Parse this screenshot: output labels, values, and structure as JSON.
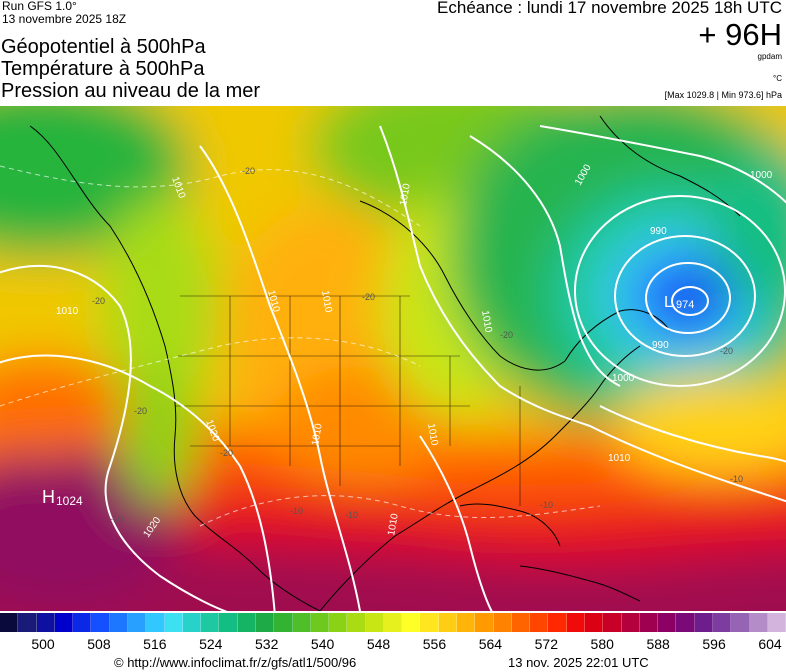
{
  "header": {
    "run": "Run GFS 1.0°",
    "run_date": "13 novembre 2025 18Z",
    "titles": [
      "Géopotentiel à 500hPa",
      "Température à 500hPa",
      "Pression au niveau de la mer"
    ],
    "echeance": "Echéance : lundi 17 novembre 2025 18h UTC",
    "forecast_hour": "+ 96H",
    "unit_geopotential": "gpdam",
    "unit_temperature": "°C",
    "pressure_extremes": "[Max 1029.8 | Min 973.6] hPa"
  },
  "map": {
    "pressure_centers": [
      {
        "type": "H",
        "value": "1024"
      },
      {
        "type": "L",
        "value": "974"
      }
    ],
    "isobar_labels": [
      "1010",
      "1010",
      "1020",
      "1010",
      "1000",
      "990",
      "1000",
      "990",
      "1000",
      "1010",
      "1010",
      "1010",
      "1010",
      "1020",
      "1010",
      "1010",
      "1010"
    ],
    "isotherm_labels": [
      "-20",
      "-20",
      "-20",
      "-20",
      "-20",
      "-20",
      "-20",
      "-10",
      "-10",
      "-10",
      "-10",
      "-10"
    ]
  },
  "legend": {
    "colors": [
      "#0a0a3c",
      "#1a1a78",
      "#1010a0",
      "#0000cd",
      "#0a28e6",
      "#1450ff",
      "#1e78ff",
      "#28a0ff",
      "#32c8ff",
      "#3ce0f0",
      "#28d2c8",
      "#1ec8a0",
      "#14be82",
      "#14b464",
      "#1eaa46",
      "#32b432",
      "#50be28",
      "#6ec81e",
      "#8cd214",
      "#aadc14",
      "#c8e614",
      "#e6f01e",
      "#ffff28",
      "#ffe61e",
      "#ffcd14",
      "#ffb40a",
      "#ff9b00",
      "#ff8200",
      "#ff6400",
      "#ff4600",
      "#ff2800",
      "#f00a0a",
      "#dc0014",
      "#c80028",
      "#b4003c",
      "#a00050",
      "#8c0064",
      "#7a0a78",
      "#6e1e8c",
      "#7d3ca0",
      "#9664b4",
      "#b48cc8",
      "#d2b4dc"
    ],
    "ticks": [
      "500",
      "508",
      "516",
      "524",
      "532",
      "540",
      "548",
      "556",
      "564",
      "572",
      "580",
      "588",
      "596",
      "604"
    ]
  },
  "footer": {
    "credit": "© http://www.infoclimat.fr/z/gfs/atl1/500/96",
    "timestamp": "13 nov. 2025 22:01 UTC"
  }
}
